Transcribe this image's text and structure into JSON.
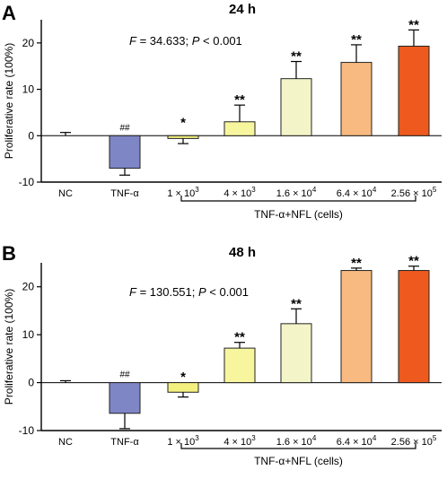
{
  "chart_data": [
    {
      "type": "bar",
      "panel_label": "A",
      "title": "24 h",
      "stats_f_label": "F",
      "stats_text": " = 34.633; P < 0.001",
      "ylabel": "Proliferative rate (100%)",
      "ylim": [
        -10,
        25
      ],
      "yticks": [
        -10,
        0,
        10,
        20
      ],
      "categories": [
        "NC",
        "TNF-α",
        "1 × 10^3",
        "4 × 10^3",
        "1.6 × 10^4",
        "6.4 × 10^4",
        "2.56 × 10^5"
      ],
      "values": [
        0,
        -7.0,
        -0.6,
        3.0,
        12.3,
        15.8,
        19.3
      ],
      "errors": [
        0.7,
        1.5,
        1.1,
        3.6,
        3.7,
        3.8,
        3.5
      ],
      "significance": [
        "",
        "##",
        "*",
        "**",
        "**",
        "**",
        "**"
      ],
      "colors": [
        "#ffffff",
        "#7e86c6",
        "#f3f07f",
        "#f8f59f",
        "#f3f5c8",
        "#f8ba80",
        "#ee5a1e"
      ],
      "group_label": "TNF-α+NFL (cells)"
    },
    {
      "type": "bar",
      "panel_label": "B",
      "title": "48 h",
      "stats_f_label": "F",
      "stats_text": " = 130.551; P < 0.001",
      "ylabel": "Proliferative rate (100%)",
      "ylim": [
        -10,
        25
      ],
      "yticks": [
        -10,
        0,
        10,
        20
      ],
      "categories": [
        "NC",
        "TNF-α",
        "1 × 10^3",
        "4 × 10^3",
        "1.6 × 10^4",
        "6.4 × 10^4",
        "2.56 × 10^5"
      ],
      "values": [
        0,
        -6.4,
        -2.0,
        7.2,
        12.3,
        23.4,
        23.4
      ],
      "errors": [
        0.4,
        3.2,
        1.0,
        1.2,
        3.1,
        0.5,
        0.9
      ],
      "significance": [
        "",
        "##",
        "*",
        "**",
        "**",
        "**",
        "**"
      ],
      "colors": [
        "#ffffff",
        "#7e86c6",
        "#f3f07f",
        "#f8f59f",
        "#f3f5c8",
        "#f8ba80",
        "#ee5a1e"
      ],
      "group_label": "TNF-α+NFL (cells)"
    }
  ]
}
